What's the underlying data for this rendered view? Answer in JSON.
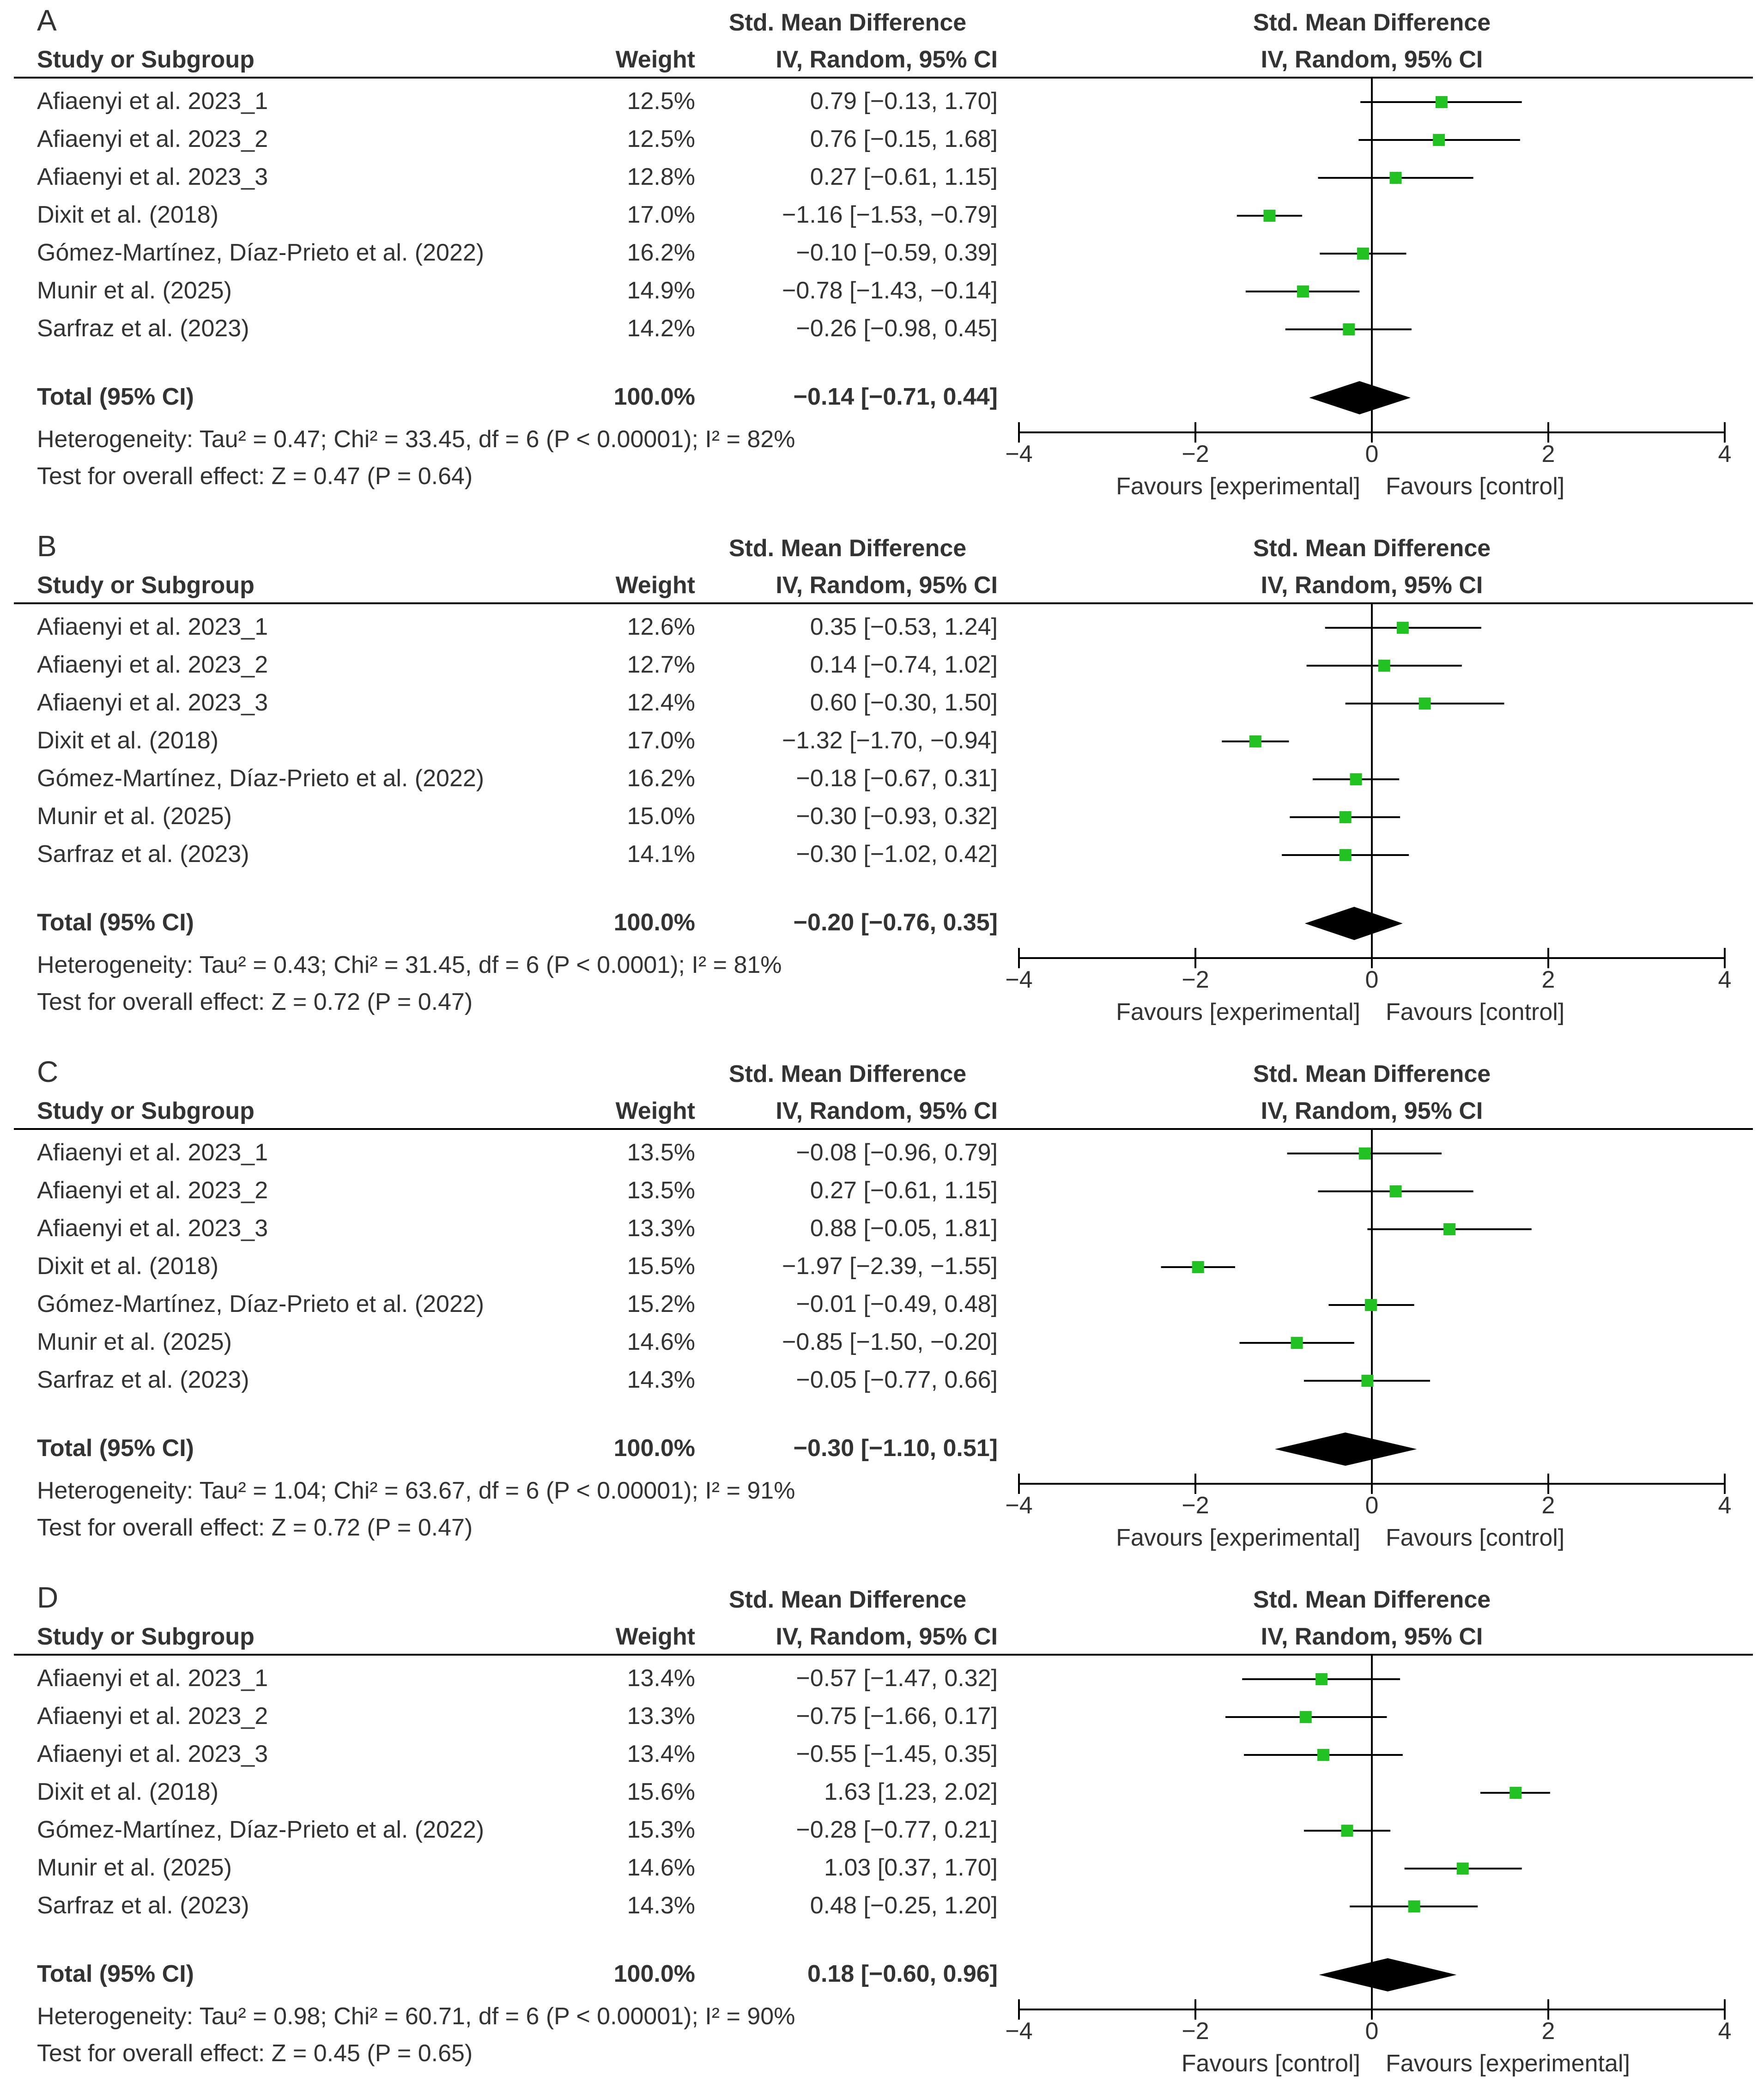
{
  "colors": {
    "marker": "#22c222",
    "line": "#000000",
    "text": "#333333"
  },
  "chart_data": [
    {
      "type": "forest",
      "panel": "A",
      "header_top": "Std. Mean Difference",
      "col_study": "Study or Subgroup",
      "col_weight": "Weight",
      "col_ci": "IV, Random, 95% CI",
      "plot_header_top": "Std. Mean Difference",
      "plot_header_sub": "IV, Random, 95% CI",
      "studies": [
        {
          "name": "Afiaenyi et al. 2023_1",
          "weight": "12.5%",
          "ci_text": "0.79 [−0.13, 1.70]",
          "est": 0.79,
          "lo": -0.13,
          "hi": 1.7
        },
        {
          "name": "Afiaenyi et al. 2023_2",
          "weight": "12.5%",
          "ci_text": "0.76 [−0.15, 1.68]",
          "est": 0.76,
          "lo": -0.15,
          "hi": 1.68
        },
        {
          "name": "Afiaenyi et al. 2023_3",
          "weight": "12.8%",
          "ci_text": "0.27 [−0.61, 1.15]",
          "est": 0.27,
          "lo": -0.61,
          "hi": 1.15
        },
        {
          "name": "Dixit et al. (2018)",
          "weight": "17.0%",
          "ci_text": "−1.16 [−1.53, −0.79]",
          "est": -1.16,
          "lo": -1.53,
          "hi": -0.79
        },
        {
          "name": "Gómez-Martínez, Díaz-Prieto et al. (2022)",
          "weight": "16.2%",
          "ci_text": "−0.10 [−0.59, 0.39]",
          "est": -0.1,
          "lo": -0.59,
          "hi": 0.39
        },
        {
          "name": "Munir et al. (2025)",
          "weight": "14.9%",
          "ci_text": "−0.78 [−1.43, −0.14]",
          "est": -0.78,
          "lo": -1.43,
          "hi": -0.14
        },
        {
          "name": "Sarfraz et al. (2023)",
          "weight": "14.2%",
          "ci_text": "−0.26 [−0.98, 0.45]",
          "est": -0.26,
          "lo": -0.98,
          "hi": 0.45
        }
      ],
      "total": {
        "label": "Total (95% CI)",
        "weight": "100.0%",
        "ci_text": "−0.14 [−0.71, 0.44]",
        "est": -0.14,
        "lo": -0.71,
        "hi": 0.44
      },
      "heterogeneity": "Heterogeneity: Tau² = 0.47; Chi² = 33.45, df = 6 (P < 0.00001); I² = 82%",
      "overall_effect": "Test for overall effect: Z = 0.47 (P = 0.64)",
      "xlim": [
        -4,
        4
      ],
      "ticks": [
        -4,
        -2,
        0,
        2,
        4
      ],
      "tick_labels": [
        "−4",
        "−2",
        "0",
        "2",
        "4"
      ],
      "favours_left": "Favours [experimental]",
      "favours_right": "Favours [control]"
    },
    {
      "type": "forest",
      "panel": "B",
      "header_top": "Std. Mean Difference",
      "col_study": "Study or Subgroup",
      "col_weight": "Weight",
      "col_ci": "IV, Random, 95% CI",
      "plot_header_top": "Std. Mean Difference",
      "plot_header_sub": "IV, Random, 95% CI",
      "studies": [
        {
          "name": "Afiaenyi et al. 2023_1",
          "weight": "12.6%",
          "ci_text": "0.35 [−0.53, 1.24]",
          "est": 0.35,
          "lo": -0.53,
          "hi": 1.24
        },
        {
          "name": "Afiaenyi et al. 2023_2",
          "weight": "12.7%",
          "ci_text": "0.14 [−0.74, 1.02]",
          "est": 0.14,
          "lo": -0.74,
          "hi": 1.02
        },
        {
          "name": "Afiaenyi et al. 2023_3",
          "weight": "12.4%",
          "ci_text": "0.60 [−0.30, 1.50]",
          "est": 0.6,
          "lo": -0.3,
          "hi": 1.5
        },
        {
          "name": "Dixit et al. (2018)",
          "weight": "17.0%",
          "ci_text": "−1.32 [−1.70, −0.94]",
          "est": -1.32,
          "lo": -1.7,
          "hi": -0.94
        },
        {
          "name": "Gómez-Martínez, Díaz-Prieto et al. (2022)",
          "weight": "16.2%",
          "ci_text": "−0.18 [−0.67, 0.31]",
          "est": -0.18,
          "lo": -0.67,
          "hi": 0.31
        },
        {
          "name": "Munir et al. (2025)",
          "weight": "15.0%",
          "ci_text": "−0.30 [−0.93, 0.32]",
          "est": -0.3,
          "lo": -0.93,
          "hi": 0.32
        },
        {
          "name": "Sarfraz et al. (2023)",
          "weight": "14.1%",
          "ci_text": "−0.30 [−1.02, 0.42]",
          "est": -0.3,
          "lo": -1.02,
          "hi": 0.42
        }
      ],
      "total": {
        "label": "Total (95% CI)",
        "weight": "100.0%",
        "ci_text": "−0.20 [−0.76, 0.35]",
        "est": -0.2,
        "lo": -0.76,
        "hi": 0.35
      },
      "heterogeneity": "Heterogeneity: Tau² = 0.43; Chi² = 31.45, df = 6 (P < 0.0001); I² = 81%",
      "overall_effect": "Test for overall effect: Z = 0.72 (P = 0.47)",
      "xlim": [
        -4,
        4
      ],
      "ticks": [
        -4,
        -2,
        0,
        2,
        4
      ],
      "tick_labels": [
        "−4",
        "−2",
        "0",
        "2",
        "4"
      ],
      "favours_left": "Favours [experimental]",
      "favours_right": "Favours [control]"
    },
    {
      "type": "forest",
      "panel": "C",
      "header_top": "Std. Mean Difference",
      "col_study": "Study or Subgroup",
      "col_weight": "Weight",
      "col_ci": "IV, Random, 95% CI",
      "plot_header_top": "Std. Mean Difference",
      "plot_header_sub": "IV, Random, 95% CI",
      "studies": [
        {
          "name": "Afiaenyi et al. 2023_1",
          "weight": "13.5%",
          "ci_text": "−0.08 [−0.96, 0.79]",
          "est": -0.08,
          "lo": -0.96,
          "hi": 0.79
        },
        {
          "name": "Afiaenyi et al. 2023_2",
          "weight": "13.5%",
          "ci_text": "0.27 [−0.61, 1.15]",
          "est": 0.27,
          "lo": -0.61,
          "hi": 1.15
        },
        {
          "name": "Afiaenyi et al. 2023_3",
          "weight": "13.3%",
          "ci_text": "0.88 [−0.05, 1.81]",
          "est": 0.88,
          "lo": -0.05,
          "hi": 1.81
        },
        {
          "name": "Dixit et al. (2018)",
          "weight": "15.5%",
          "ci_text": "−1.97 [−2.39, −1.55]",
          "est": -1.97,
          "lo": -2.39,
          "hi": -1.55
        },
        {
          "name": "Gómez-Martínez, Díaz-Prieto et al. (2022)",
          "weight": "15.2%",
          "ci_text": "−0.01 [−0.49, 0.48]",
          "est": -0.01,
          "lo": -0.49,
          "hi": 0.48
        },
        {
          "name": "Munir et al. (2025)",
          "weight": "14.6%",
          "ci_text": "−0.85 [−1.50, −0.20]",
          "est": -0.85,
          "lo": -1.5,
          "hi": -0.2
        },
        {
          "name": "Sarfraz et al. (2023)",
          "weight": "14.3%",
          "ci_text": "−0.05 [−0.77, 0.66]",
          "est": -0.05,
          "lo": -0.77,
          "hi": 0.66
        }
      ],
      "total": {
        "label": "Total (95% CI)",
        "weight": "100.0%",
        "ci_text": "−0.30 [−1.10, 0.51]",
        "est": -0.3,
        "lo": -1.1,
        "hi": 0.51
      },
      "heterogeneity": "Heterogeneity: Tau² = 1.04; Chi² = 63.67, df = 6 (P < 0.00001); I² = 91%",
      "overall_effect": "Test for overall effect: Z = 0.72 (P = 0.47)",
      "xlim": [
        -4,
        4
      ],
      "ticks": [
        -4,
        -2,
        0,
        2,
        4
      ],
      "tick_labels": [
        "−4",
        "−2",
        "0",
        "2",
        "4"
      ],
      "favours_left": "Favours [experimental]",
      "favours_right": "Favours [control]"
    },
    {
      "type": "forest",
      "panel": "D",
      "header_top": "Std. Mean Difference",
      "col_study": "Study or Subgroup",
      "col_weight": "Weight",
      "col_ci": "IV, Random, 95% CI",
      "plot_header_top": "Std. Mean Difference",
      "plot_header_sub": "IV, Random, 95% CI",
      "studies": [
        {
          "name": "Afiaenyi et al. 2023_1",
          "weight": "13.4%",
          "ci_text": "−0.57 [−1.47, 0.32]",
          "est": -0.57,
          "lo": -1.47,
          "hi": 0.32
        },
        {
          "name": "Afiaenyi et al. 2023_2",
          "weight": "13.3%",
          "ci_text": "−0.75 [−1.66, 0.17]",
          "est": -0.75,
          "lo": -1.66,
          "hi": 0.17
        },
        {
          "name": "Afiaenyi et al. 2023_3",
          "weight": "13.4%",
          "ci_text": "−0.55 [−1.45, 0.35]",
          "est": -0.55,
          "lo": -1.45,
          "hi": 0.35
        },
        {
          "name": "Dixit et al. (2018)",
          "weight": "15.6%",
          "ci_text": "1.63 [1.23, 2.02]",
          "est": 1.63,
          "lo": 1.23,
          "hi": 2.02
        },
        {
          "name": "Gómez-Martínez, Díaz-Prieto et al. (2022)",
          "weight": "15.3%",
          "ci_text": "−0.28 [−0.77, 0.21]",
          "est": -0.28,
          "lo": -0.77,
          "hi": 0.21
        },
        {
          "name": "Munir et al. (2025)",
          "weight": "14.6%",
          "ci_text": "1.03 [0.37, 1.70]",
          "est": 1.03,
          "lo": 0.37,
          "hi": 1.7
        },
        {
          "name": "Sarfraz et al. (2023)",
          "weight": "14.3%",
          "ci_text": "0.48 [−0.25, 1.20]",
          "est": 0.48,
          "lo": -0.25,
          "hi": 1.2
        }
      ],
      "total": {
        "label": "Total (95% CI)",
        "weight": "100.0%",
        "ci_text": "0.18 [−0.60, 0.96]",
        "est": 0.18,
        "lo": -0.6,
        "hi": 0.96
      },
      "heterogeneity": "Heterogeneity: Tau² = 0.98; Chi² = 60.71, df = 6 (P < 0.00001); I² = 90%",
      "overall_effect": "Test for overall effect: Z = 0.45 (P = 0.65)",
      "xlim": [
        -4,
        4
      ],
      "ticks": [
        -4,
        -2,
        0,
        2,
        4
      ],
      "tick_labels": [
        "−4",
        "−2",
        "0",
        "2",
        "4"
      ],
      "favours_left": "Favours [control]",
      "favours_right": "Favours [experimental]"
    }
  ]
}
